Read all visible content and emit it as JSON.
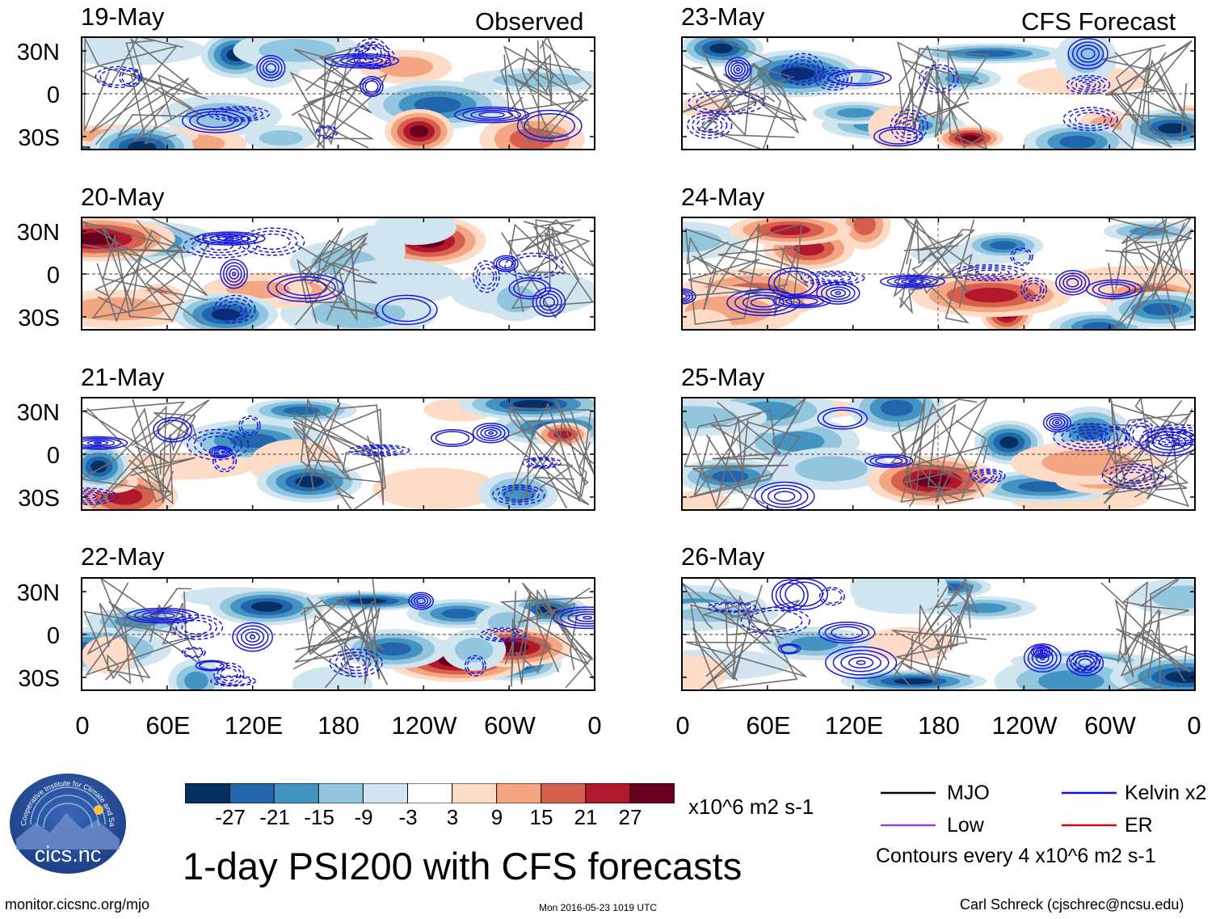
{
  "chart_data": {
    "type": "heatmap",
    "title": "1-day PSI200 with CFS forecasts",
    "variable": "PSI200",
    "units": "x10^6 m2 s-1",
    "contour_note": "Contours every 4 x10^6 m2 s-1",
    "observed_label": "Observed",
    "forecast_label": "CFS Forecast",
    "lat_ticks": [
      "30N",
      "0",
      "30S"
    ],
    "lon_ticks": [
      "0",
      "60E",
      "120E",
      "180",
      "120W",
      "60W",
      "0"
    ],
    "lat_range": [
      -40,
      40
    ],
    "lon_range": [
      0,
      360
    ],
    "colorbar": {
      "labels": [
        "-27",
        "-21",
        "-15",
        "-9",
        "-3",
        "3",
        "9",
        "15",
        "21",
        "27"
      ],
      "levels": [
        -27,
        -21,
        -15,
        -9,
        -3,
        3,
        9,
        15,
        21,
        27
      ],
      "colors": [
        "#053061",
        "#2166ac",
        "#4393c3",
        "#92c5de",
        "#d1e5f0",
        "#ffffff",
        "#fddbc7",
        "#f4a582",
        "#d6604d",
        "#b2182b",
        "#67001f"
      ]
    },
    "panels": [
      {
        "date": "19-May",
        "source": "Observed"
      },
      {
        "date": "20-May",
        "source": "Observed"
      },
      {
        "date": "21-May",
        "source": "Observed"
      },
      {
        "date": "22-May",
        "source": "Observed"
      },
      {
        "date": "23-May",
        "source": "CFS Forecast"
      },
      {
        "date": "24-May",
        "source": "CFS Forecast"
      },
      {
        "date": "25-May",
        "source": "CFS Forecast"
      },
      {
        "date": "26-May",
        "source": "CFS Forecast"
      }
    ],
    "legend": [
      {
        "label": "MJO",
        "color": "#000000"
      },
      {
        "label": "Kelvin x2",
        "color": "#1010d0"
      },
      {
        "label": "Low",
        "color": "#a040d0"
      },
      {
        "label": "ER",
        "color": "#c01010"
      }
    ]
  },
  "footer": {
    "url": "monitor.cicsnc.org/mjo",
    "timestamp": "Mon 2016-05-23 1019 UTC",
    "author": "Carl Schreck (cjschrec@ncsu.edu)"
  },
  "logo": {
    "name": "cics.nc",
    "ring_text": "Cooperative Institute for Climate and Satellites"
  }
}
